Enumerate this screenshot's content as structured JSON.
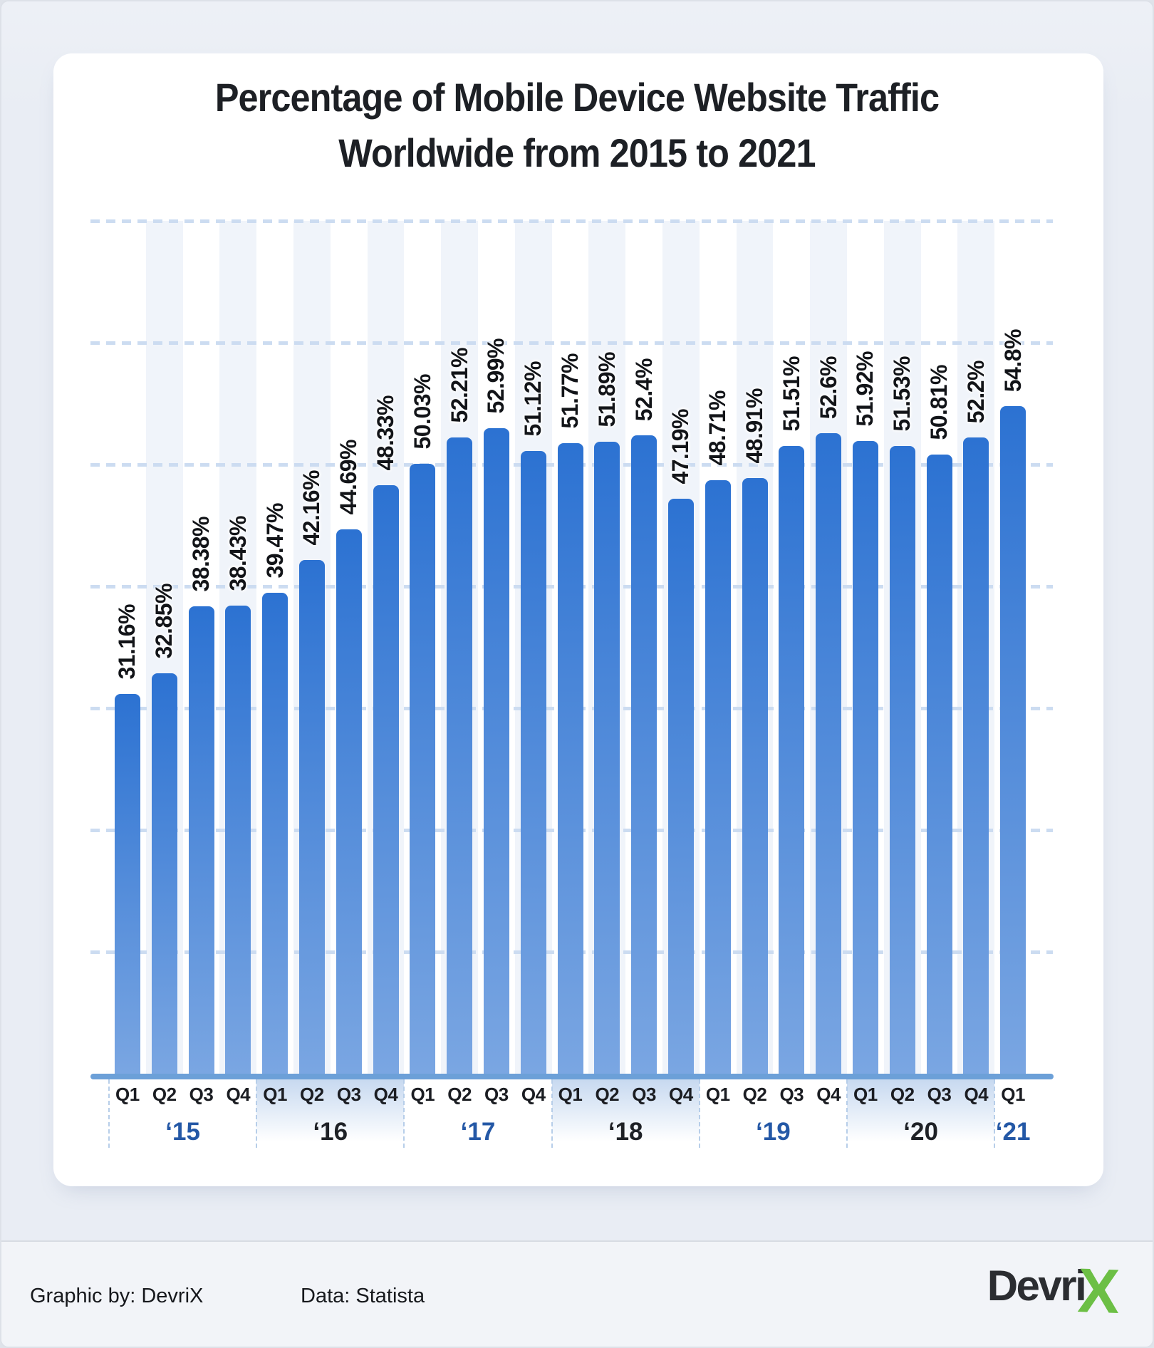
{
  "title": {
    "line1": "Percentage of Mobile Device Website Traffic",
    "line2": "Worldwide from 2015 to 2021"
  },
  "chart_data": {
    "type": "bar",
    "title": "Percentage of Mobile Device Website Traffic Worldwide from 2015 to 2021",
    "quarter_labels": [
      "Q1",
      "Q2",
      "Q3",
      "Q4",
      "Q1",
      "Q2",
      "Q3",
      "Q4",
      "Q1",
      "Q2",
      "Q3",
      "Q4",
      "Q1",
      "Q2",
      "Q3",
      "Q4",
      "Q1",
      "Q2",
      "Q3",
      "Q4",
      "Q1",
      "Q2",
      "Q3",
      "Q4",
      "Q1"
    ],
    "values": [
      31.16,
      32.85,
      38.38,
      38.43,
      39.47,
      42.16,
      44.69,
      48.33,
      50.03,
      52.21,
      52.99,
      51.12,
      51.77,
      51.89,
      52.4,
      47.19,
      48.71,
      48.91,
      51.51,
      52.6,
      51.92,
      51.53,
      50.81,
      52.2,
      54.8
    ],
    "value_labels": [
      "31.16%",
      "32.85%",
      "38.38%",
      "38.43%",
      "39.47%",
      "42.16%",
      "44.69%",
      "48.33%",
      "50.03%",
      "52.21%",
      "52.99%",
      "51.12%",
      "51.77%",
      "51.89%",
      "52.4%",
      "47.19%",
      "48.71%",
      "48.91%",
      "51.51%",
      "52.6%",
      "51.92%",
      "51.53%",
      "50.81%",
      "52.2%",
      "54.8%"
    ],
    "year_groups": [
      {
        "label": "‘15",
        "quarters": 4
      },
      {
        "label": "‘16",
        "quarters": 4
      },
      {
        "label": "‘17",
        "quarters": 4
      },
      {
        "label": "‘18",
        "quarters": 4
      },
      {
        "label": "‘19",
        "quarters": 4
      },
      {
        "label": "‘20",
        "quarters": 4
      },
      {
        "label": "‘21",
        "quarters": 1
      }
    ],
    "ylim": [
      0,
      70
    ],
    "grid_step_pct": 10,
    "grid_style": "dashed-horizontal",
    "legend": "none",
    "unit": "%"
  },
  "colors": {
    "page_bg": "#e9edf4",
    "card_bg": "#ffffff",
    "title_text": "#1d2025",
    "bar_top": "#2c72d2",
    "bar_bottom": "#7aa6e2",
    "stripe": "#f0f4fa",
    "gridline": "#ccdcf1",
    "baseline": "#6ca0d8",
    "band": "#c7d9f0",
    "separator": "#b7cee9",
    "year_blue": "#2458a6",
    "year_dark": "#1e2126",
    "quarter_text": "#1b1d22",
    "value_text": "#121418",
    "footer_text": "#16181c",
    "divider": "#d8dce3",
    "footer_bg": "#f2f4f8",
    "logo_dark": "#2b2d31",
    "logo_green": "#6cbf45"
  },
  "footer": {
    "credit": "Graphic by: DevriX",
    "source": "Data: Statista"
  },
  "logo": {
    "text": "Devri",
    "x": "X"
  }
}
